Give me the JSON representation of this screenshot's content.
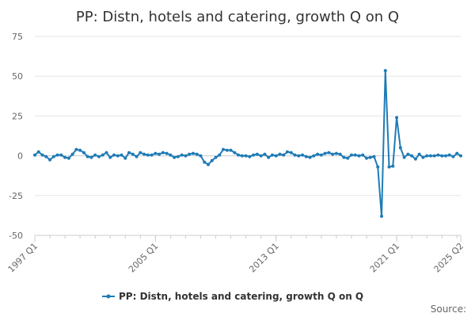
{
  "chart_data": {
    "type": "line",
    "title": "PP: Distn, hotels and catering, growth Q on Q",
    "xlabel": "",
    "ylabel": "",
    "ylim": [
      -50,
      75
    ],
    "y_ticks": [
      "75",
      "50",
      "25",
      "0",
      "-25",
      "-50"
    ],
    "x_tick_labels": [
      "1997 Q1",
      "2005 Q1",
      "2013 Q1",
      "2021 Q1",
      "2025 Q2"
    ],
    "grid": true,
    "legend_position": "bottom",
    "legend": "PP: Distn, hotels and catering, growth Q on Q",
    "series_color": "#1f7bb6",
    "source_label": "Source:",
    "x": [
      "1997 Q1",
      "1997 Q2",
      "1997 Q3",
      "1997 Q4",
      "1998 Q1",
      "1998 Q2",
      "1998 Q3",
      "1998 Q4",
      "1999 Q1",
      "1999 Q2",
      "1999 Q3",
      "1999 Q4",
      "2000 Q1",
      "2000 Q2",
      "2000 Q3",
      "2000 Q4",
      "2001 Q1",
      "2001 Q2",
      "2001 Q3",
      "2001 Q4",
      "2002 Q1",
      "2002 Q2",
      "2002 Q3",
      "2002 Q4",
      "2003 Q1",
      "2003 Q2",
      "2003 Q3",
      "2003 Q4",
      "2004 Q1",
      "2004 Q2",
      "2004 Q3",
      "2004 Q4",
      "2005 Q1",
      "2005 Q2",
      "2005 Q3",
      "2005 Q4",
      "2006 Q1",
      "2006 Q2",
      "2006 Q3",
      "2006 Q4",
      "2007 Q1",
      "2007 Q2",
      "2007 Q3",
      "2007 Q4",
      "2008 Q1",
      "2008 Q2",
      "2008 Q3",
      "2008 Q4",
      "2009 Q1",
      "2009 Q2",
      "2009 Q3",
      "2009 Q4",
      "2010 Q1",
      "2010 Q2",
      "2010 Q3",
      "2010 Q4",
      "2011 Q1",
      "2011 Q2",
      "2011 Q3",
      "2011 Q4",
      "2012 Q1",
      "2012 Q2",
      "2012 Q3",
      "2012 Q4",
      "2013 Q1",
      "2013 Q2",
      "2013 Q3",
      "2013 Q4",
      "2014 Q1",
      "2014 Q2",
      "2014 Q3",
      "2014 Q4",
      "2015 Q1",
      "2015 Q2",
      "2015 Q3",
      "2015 Q4",
      "2016 Q1",
      "2016 Q2",
      "2016 Q3",
      "2016 Q4",
      "2017 Q1",
      "2017 Q2",
      "2017 Q3",
      "2017 Q4",
      "2018 Q1",
      "2018 Q2",
      "2018 Q3",
      "2018 Q4",
      "2019 Q1",
      "2019 Q2",
      "2019 Q3",
      "2019 Q4",
      "2020 Q1",
      "2020 Q2",
      "2020 Q3",
      "2020 Q4",
      "2021 Q1",
      "2021 Q2",
      "2021 Q3",
      "2021 Q4",
      "2022 Q1",
      "2022 Q2",
      "2022 Q3",
      "2022 Q4",
      "2023 Q1",
      "2023 Q2",
      "2023 Q3",
      "2023 Q4",
      "2024 Q1",
      "2024 Q2",
      "2024 Q3",
      "2024 Q4",
      "2025 Q1",
      "2025 Q2"
    ],
    "series": [
      {
        "name": "PP: Distn, hotels and catering, growth Q on Q",
        "values": [
          0.5,
          2.5,
          0.5,
          -0.5,
          -2.5,
          -0.5,
          0.5,
          0.5,
          -1.0,
          -1.5,
          1.0,
          4.0,
          3.5,
          2.0,
          -0.5,
          -1.0,
          0.5,
          -0.5,
          0.5,
          2.0,
          -1.0,
          0.5,
          0.0,
          0.5,
          -1.5,
          2.0,
          1.0,
          -0.5,
          2.0,
          1.0,
          0.5,
          0.5,
          1.5,
          1.0,
          2.0,
          1.5,
          0.5,
          -1.0,
          -0.5,
          0.5,
          0.0,
          1.0,
          1.5,
          1.0,
          0.0,
          -4.0,
          -5.5,
          -3.0,
          -1.0,
          0.5,
          4.0,
          3.5,
          3.5,
          2.0,
          0.5,
          0.0,
          0.0,
          -0.5,
          0.5,
          1.0,
          0.0,
          1.0,
          -1.0,
          0.5,
          0.0,
          1.0,
          0.5,
          2.5,
          2.0,
          0.5,
          0.0,
          0.5,
          -0.5,
          -1.0,
          0.0,
          1.0,
          0.5,
          1.5,
          2.0,
          1.0,
          1.5,
          1.0,
          -1.0,
          -1.5,
          0.5,
          0.5,
          0.0,
          0.5,
          -1.5,
          -1.0,
          -0.5,
          -7.0,
          -38.0,
          53.5,
          -7.0,
          -6.5,
          24.0,
          5.0,
          -1.0,
          1.0,
          0.0,
          -2.0,
          1.0,
          -1.0,
          0.0,
          0.0,
          0.0,
          0.5,
          0.0,
          0.0,
          0.5,
          -0.5,
          1.5,
          0.0
        ]
      }
    ]
  }
}
